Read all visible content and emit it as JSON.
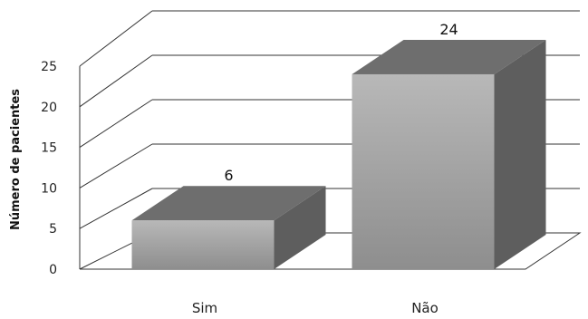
{
  "chart_data": {
    "type": "bar",
    "categories": [
      "Sim",
      "Não"
    ],
    "values": [
      6,
      24
    ],
    "title": "",
    "xlabel": "",
    "ylabel": "Número de pacientes",
    "ylim": [
      0,
      25
    ],
    "yticks": [
      0,
      5,
      10,
      15,
      20,
      25
    ],
    "grid": true,
    "legend": "none",
    "colors": {
      "bar_front": "#9a9a9a",
      "bar_top": "#6e6e6e",
      "bar_side": "#5e5e5e",
      "grid": "#333333"
    }
  }
}
